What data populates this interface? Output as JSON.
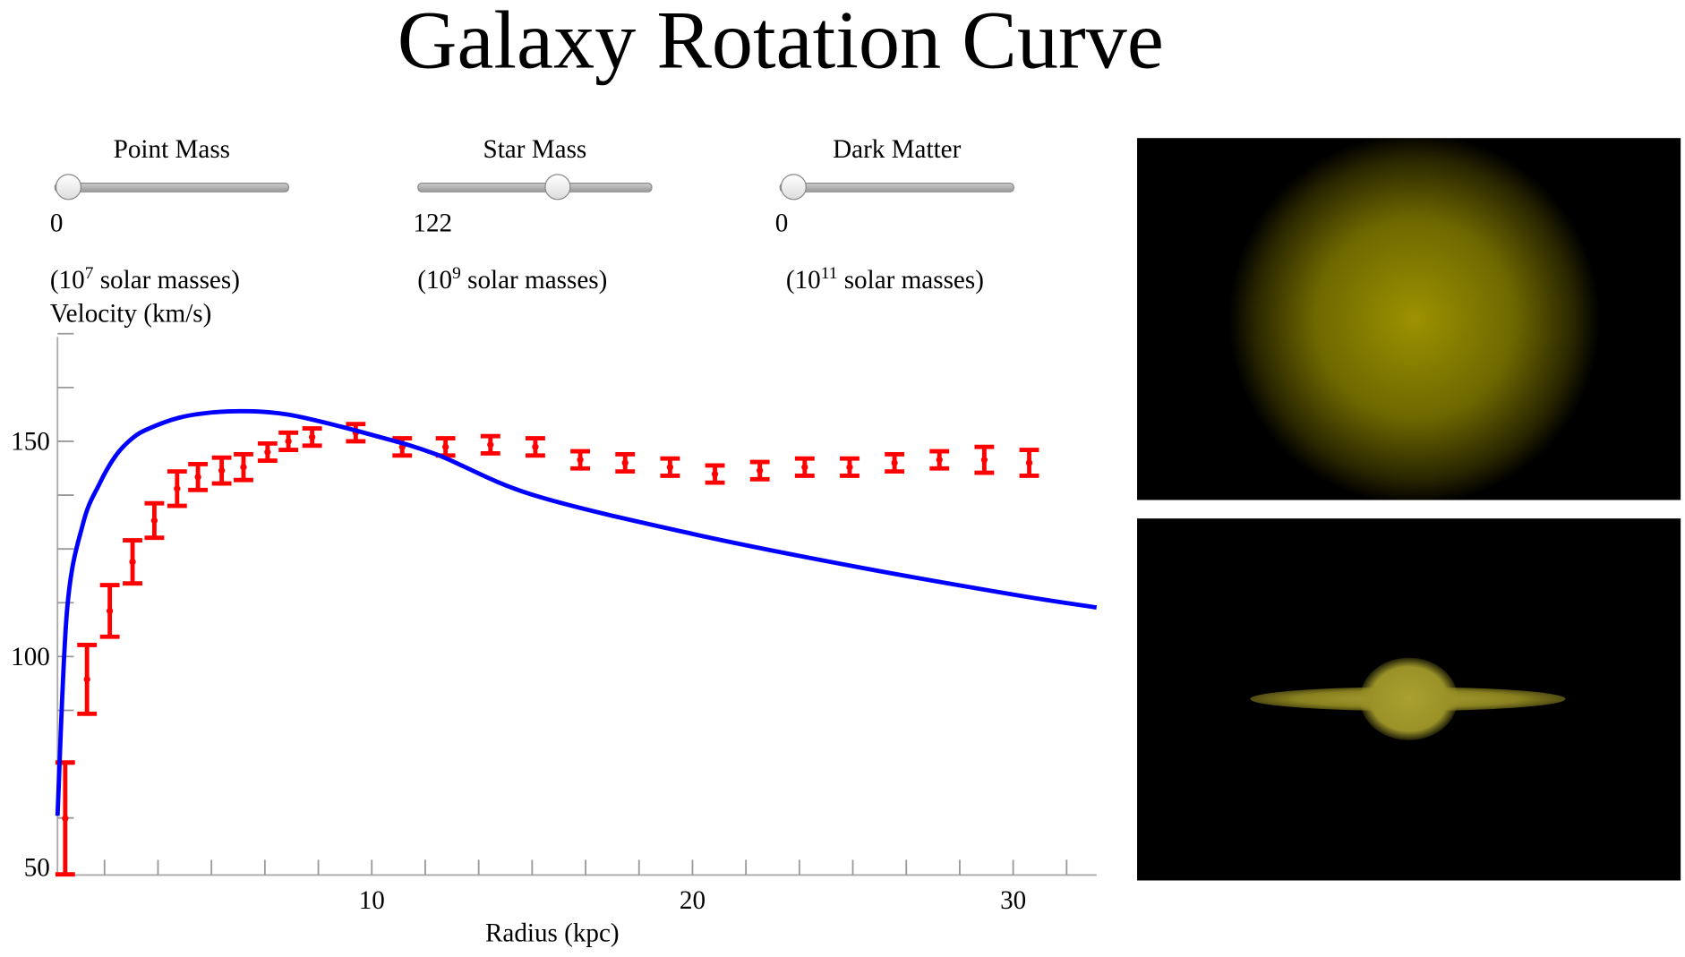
{
  "title": "Galaxy Rotation Curve",
  "controls": [
    {
      "label": "Point Mass",
      "value": "0",
      "unit_pre": "(10",
      "unit_exp": "7",
      "unit_post": " solar masses)",
      "fraction": 0.0
    },
    {
      "label": "Star Mass",
      "value": "122",
      "unit_pre": "(10",
      "unit_exp": "9",
      "unit_post": " solar masses)",
      "fraction": 0.61
    },
    {
      "label": "Dark Matter",
      "value": "0",
      "unit_pre": "(10",
      "unit_exp": "11",
      "unit_post": " solar masses)",
      "fraction": 0.0
    }
  ],
  "chart_data": {
    "type": "scatter",
    "ylabel": "Velocity (km/s)",
    "xlabel": "Radius (kpc)",
    "xlim": [
      0.2,
      32.6
    ],
    "ylim": [
      50,
      175
    ],
    "xticks": [
      "10",
      "20",
      "30"
    ],
    "yticks": [
      "50",
      "100",
      "150"
    ],
    "colors": {
      "model": "#0000ff",
      "observed": "#ff0000"
    },
    "observed": [
      {
        "x": 0.44,
        "v": 62.4,
        "err": 13
      },
      {
        "x": 1.12,
        "v": 94.7,
        "err": 8
      },
      {
        "x": 1.83,
        "v": 110.6,
        "err": 6
      },
      {
        "x": 2.54,
        "v": 122,
        "err": 5
      },
      {
        "x": 3.22,
        "v": 131.6,
        "err": 4
      },
      {
        "x": 3.93,
        "v": 139,
        "err": 4
      },
      {
        "x": 4.58,
        "v": 141.7,
        "err": 3
      },
      {
        "x": 5.32,
        "v": 143.2,
        "err": 3
      },
      {
        "x": 6.0,
        "v": 144,
        "err": 3
      },
      {
        "x": 6.75,
        "v": 147.5,
        "err": 2
      },
      {
        "x": 7.4,
        "v": 150,
        "err": 2
      },
      {
        "x": 8.14,
        "v": 151,
        "err": 2
      },
      {
        "x": 9.5,
        "v": 152,
        "err": 2
      },
      {
        "x": 10.95,
        "v": 148.7,
        "err": 2
      },
      {
        "x": 12.3,
        "v": 148.7,
        "err": 2
      },
      {
        "x": 13.7,
        "v": 149.2,
        "err": 2
      },
      {
        "x": 15.1,
        "v": 148.7,
        "err": 2
      },
      {
        "x": 16.5,
        "v": 145.7,
        "err": 2
      },
      {
        "x": 17.9,
        "v": 145,
        "err": 2
      },
      {
        "x": 19.3,
        "v": 144,
        "err": 2
      },
      {
        "x": 20.7,
        "v": 142.4,
        "err": 2
      },
      {
        "x": 22.1,
        "v": 143.2,
        "err": 2
      },
      {
        "x": 23.5,
        "v": 144,
        "err": 2
      },
      {
        "x": 24.9,
        "v": 144,
        "err": 2
      },
      {
        "x": 26.3,
        "v": 145,
        "err": 2
      },
      {
        "x": 27.7,
        "v": 145.7,
        "err": 2
      },
      {
        "x": 29.1,
        "v": 145.7,
        "err": 3
      },
      {
        "x": 30.5,
        "v": 145,
        "err": 3
      }
    ],
    "model_curve": {
      "x": [
        0.2,
        0.5,
        1,
        1.5,
        2,
        2.5,
        3,
        4,
        5,
        6,
        7,
        8,
        10,
        12,
        15,
        20,
        25,
        30,
        32.6
      ],
      "v": [
        63,
        111,
        131,
        140,
        146.5,
        150.5,
        152.8,
        155.5,
        156.7,
        157,
        156.6,
        155.3,
        151.5,
        147,
        137.6,
        128.5,
        121,
        114.4,
        111.4
      ]
    }
  },
  "images": [
    {
      "name": "galaxy-face-on"
    },
    {
      "name": "galaxy-edge-on"
    }
  ]
}
